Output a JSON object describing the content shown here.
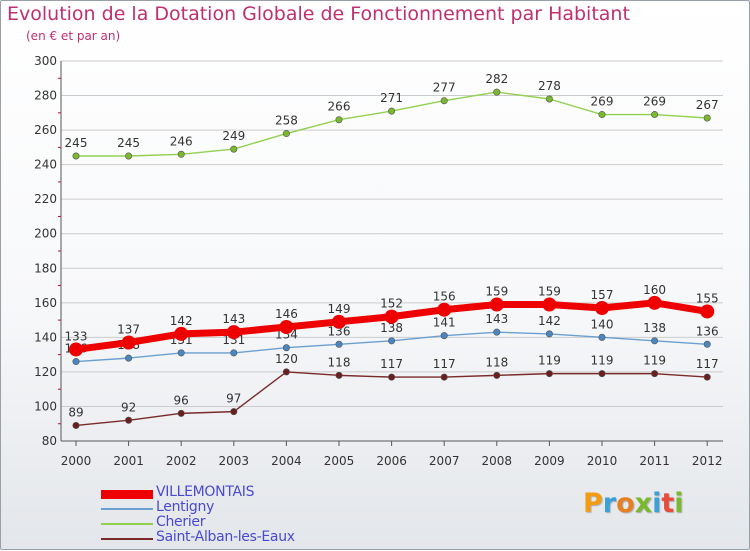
{
  "title": "Evolution de la Dotation Globale de Fonctionnement par Habitant",
  "subtitle": "(en € et par an)",
  "brand": "Proxiti",
  "colors": {
    "title": "#c03070",
    "grid": "#cccccc",
    "axis": "#555555",
    "tick_marks": "#cc0033",
    "legend_text": "#4a4ad0"
  },
  "chart_data": {
    "type": "line",
    "x": [
      2000,
      2001,
      2002,
      2003,
      2004,
      2005,
      2006,
      2007,
      2008,
      2009,
      2010,
      2011,
      2012
    ],
    "ylim": [
      80,
      300
    ],
    "yticks": [
      80,
      100,
      120,
      140,
      160,
      180,
      200,
      220,
      240,
      260,
      280,
      300
    ],
    "grid": true,
    "legend_position": "bottom-left",
    "series": [
      {
        "name": "Cherier",
        "color": "#92d050",
        "marker": "#7ab82e",
        "emphasis": false,
        "values": [
          245,
          245,
          246,
          249,
          258,
          266,
          271,
          277,
          282,
          278,
          269,
          269,
          267
        ]
      },
      {
        "name": "Lentigny",
        "color": "#6b9fd0",
        "marker": "#4a86c0",
        "emphasis": false,
        "values": [
          126,
          128,
          131,
          131,
          134,
          136,
          138,
          141,
          143,
          142,
          140,
          138,
          136
        ]
      },
      {
        "name": "Saint-Alban-les-Eaux",
        "color": "#7a2a2a",
        "marker": "#6a1f1f",
        "emphasis": false,
        "values": [
          89,
          92,
          96,
          97,
          120,
          118,
          117,
          117,
          118,
          119,
          119,
          119,
          117
        ]
      },
      {
        "name": "VILLEMONTAIS",
        "color": "#ee0000",
        "marker": "#ee0000",
        "emphasis": true,
        "values": [
          133,
          137,
          142,
          143,
          146,
          149,
          152,
          156,
          159,
          159,
          157,
          160,
          155
        ]
      }
    ],
    "legend_order": [
      "VILLEMONTAIS",
      "Lentigny",
      "Cherier",
      "Saint-Alban-les-Eaux"
    ]
  }
}
